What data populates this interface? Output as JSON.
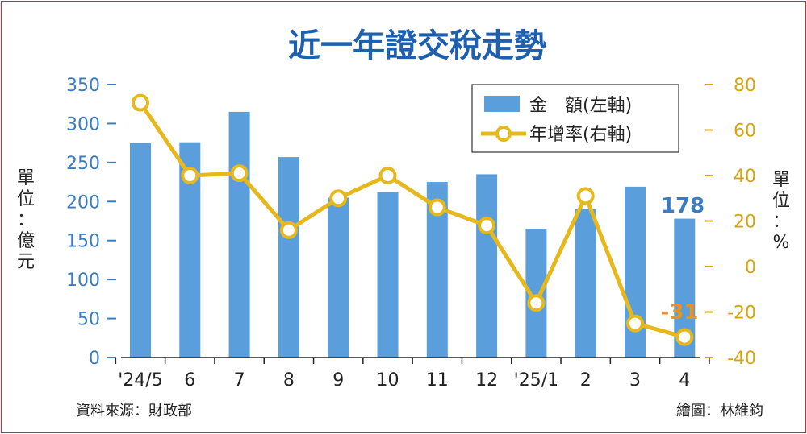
{
  "chart_data": {
    "type": "bar+line",
    "title": "近一年證交稅走勢",
    "categories": [
      "'24/5",
      "6",
      "7",
      "8",
      "9",
      "10",
      "11",
      "12",
      "'25/1",
      "2",
      "3",
      "4"
    ],
    "series": [
      {
        "name": "金　額(左軸)",
        "type": "bar",
        "axis": "left",
        "color": "#5a9fdc",
        "values": [
          275,
          276,
          315,
          257,
          205,
          212,
          225,
          235,
          165,
          190,
          219,
          178
        ]
      },
      {
        "name": "年增率(右軸)",
        "type": "line",
        "axis": "right",
        "color": "#e6b81c",
        "values": [
          72,
          40,
          41,
          16,
          30,
          40,
          26,
          18,
          -16,
          31,
          -25,
          -31
        ]
      }
    ],
    "left_axis": {
      "label": "單位：億元",
      "ylim": [
        0,
        350
      ],
      "ticks": [
        "350",
        "300",
        "250",
        "200",
        "150",
        "100",
        "50",
        "0"
      ],
      "color": "#3a7cc4"
    },
    "right_axis": {
      "label": "單位：%",
      "ylim": [
        -40,
        80
      ],
      "ticks": [
        "80",
        "60",
        "40",
        "20",
        "0",
        "-20",
        "-40"
      ],
      "color": "#d8a40c"
    },
    "annotations": {
      "last_bar": "178",
      "last_point": "-31"
    },
    "legend_position": "top-right",
    "grid": false
  },
  "footer": {
    "source": "資料來源：財政部",
    "credit": "繪圖：林維鈞"
  }
}
